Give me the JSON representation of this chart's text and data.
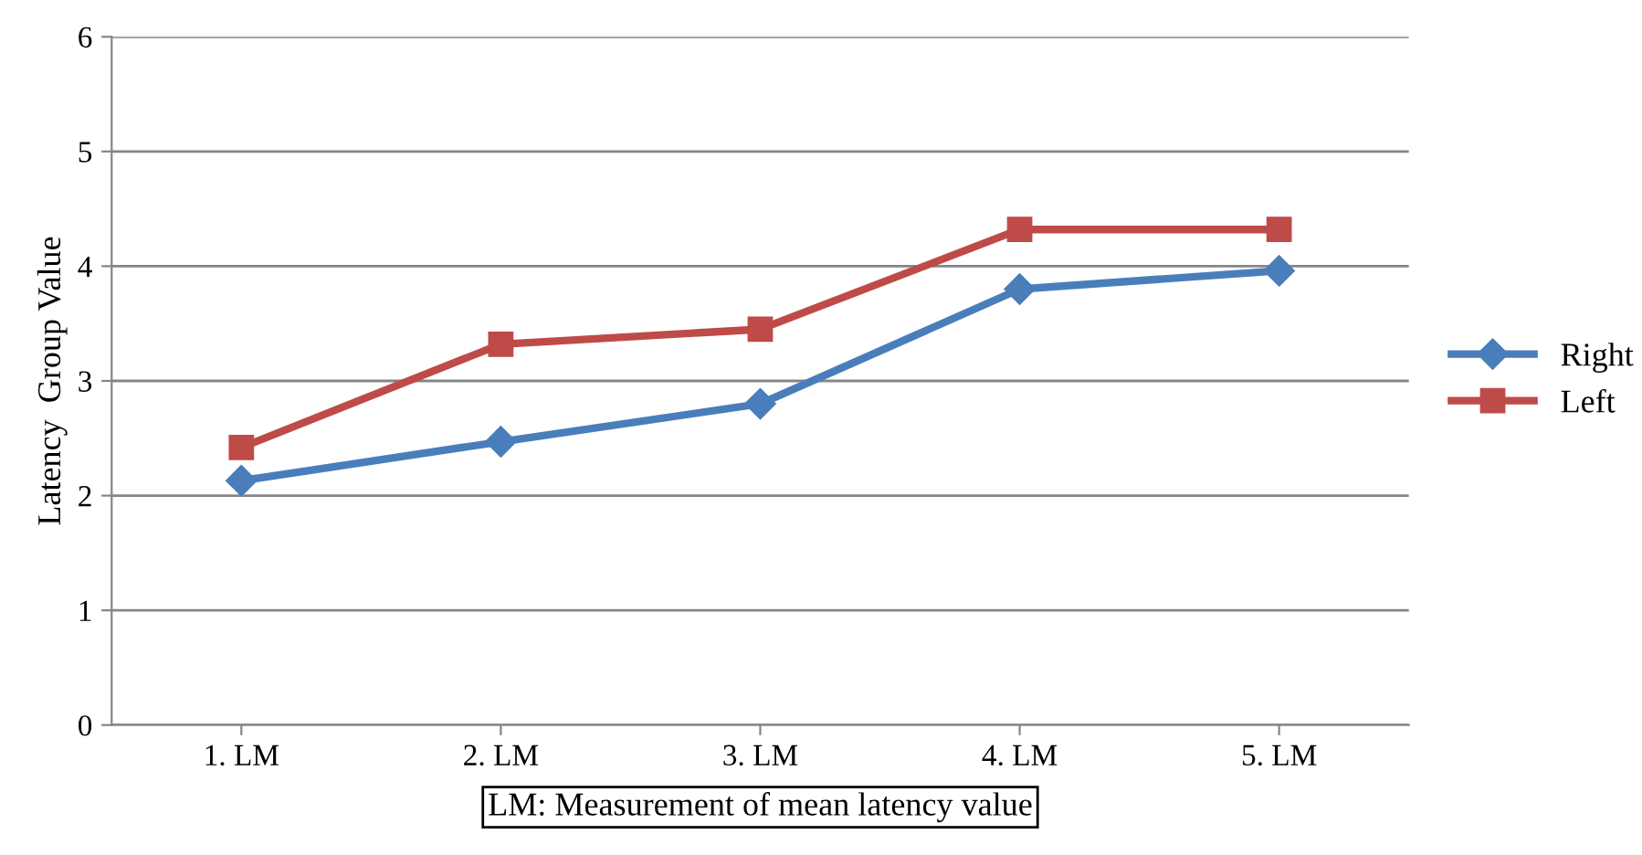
{
  "chart_data": {
    "type": "line",
    "xlabel": "LM: Measurement of mean latency value",
    "ylabel": "Latency  Group Value",
    "categories": [
      "1. LM",
      "2. LM",
      "3. LM",
      "4. LM",
      "5. LM"
    ],
    "series": [
      {
        "name": "Right",
        "color": "#4a7ebb",
        "marker": "diamond",
        "values": [
          2.13,
          2.47,
          2.8,
          3.8,
          3.96
        ]
      },
      {
        "name": "Left",
        "color": "#be4b48",
        "marker": "square",
        "values": [
          2.42,
          3.32,
          3.45,
          4.32,
          4.32
        ]
      }
    ],
    "ylim": [
      0,
      6
    ],
    "yticks": [
      0,
      1,
      2,
      3,
      4,
      5,
      6
    ],
    "grid": "y",
    "legend": "right"
  }
}
